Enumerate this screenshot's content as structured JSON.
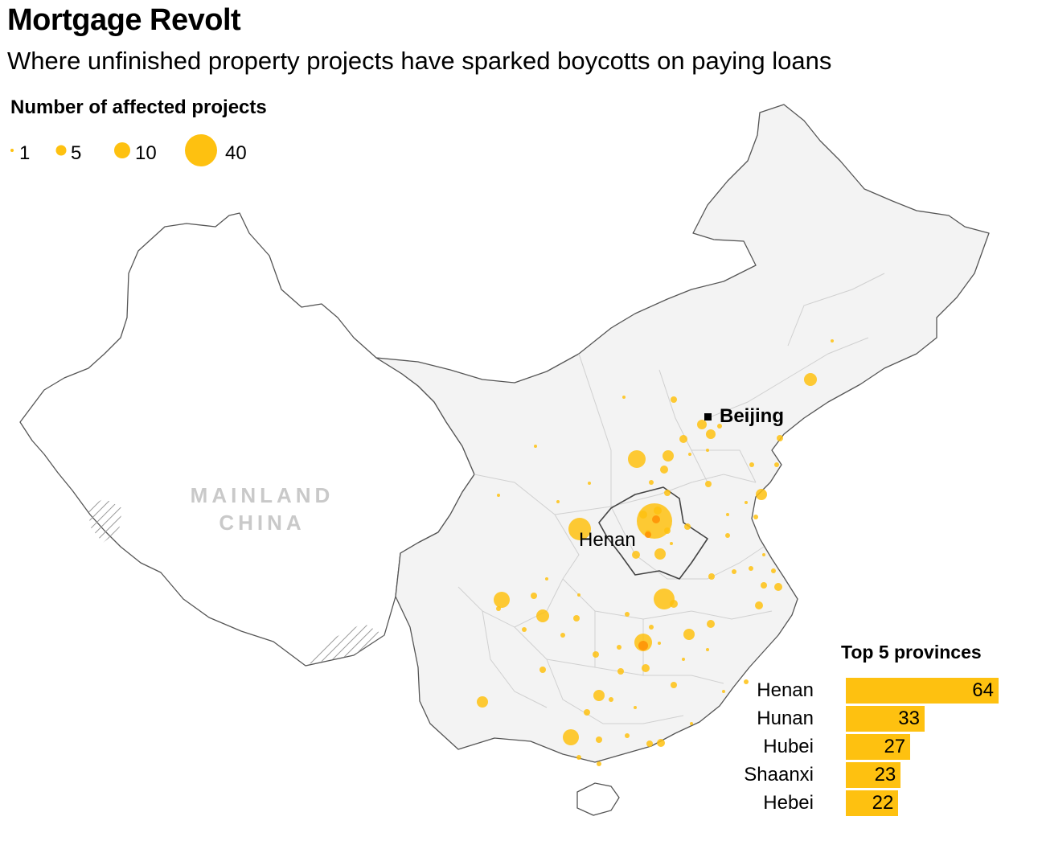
{
  "header": {
    "title": "Mortgage Revolt",
    "subtitle": "Where unfinished property projects have sparked boycotts on paying loans"
  },
  "legend": {
    "title": "Number of affected projects",
    "items": [
      {
        "value": 1,
        "label": "1"
      },
      {
        "value": 5,
        "label": "5"
      },
      {
        "value": 10,
        "label": "10"
      },
      {
        "value": 40,
        "label": "40"
      }
    ]
  },
  "map": {
    "region_label_line1": "MAINLAND",
    "region_label_line2": "CHINA",
    "capital_label": "Beijing",
    "province_label": "Henan",
    "colors": {
      "bubble": "#fec110",
      "bubble_dense": "#ff8c00",
      "land": "#f3f3f3",
      "border": "#6e6e6e",
      "province_border": "#cfcfcf"
    }
  },
  "top_provinces": {
    "title": "Top 5 provinces",
    "items": [
      {
        "name": "Henan",
        "value": 64,
        "label": "64"
      },
      {
        "name": "Hunan",
        "value": 33,
        "label": "33"
      },
      {
        "name": "Hubei",
        "value": 27,
        "label": "27"
      },
      {
        "name": "Shaanxi",
        "value": 23,
        "label": "23"
      },
      {
        "name": "Hebei",
        "value": 22,
        "label": "22"
      }
    ]
  }
}
